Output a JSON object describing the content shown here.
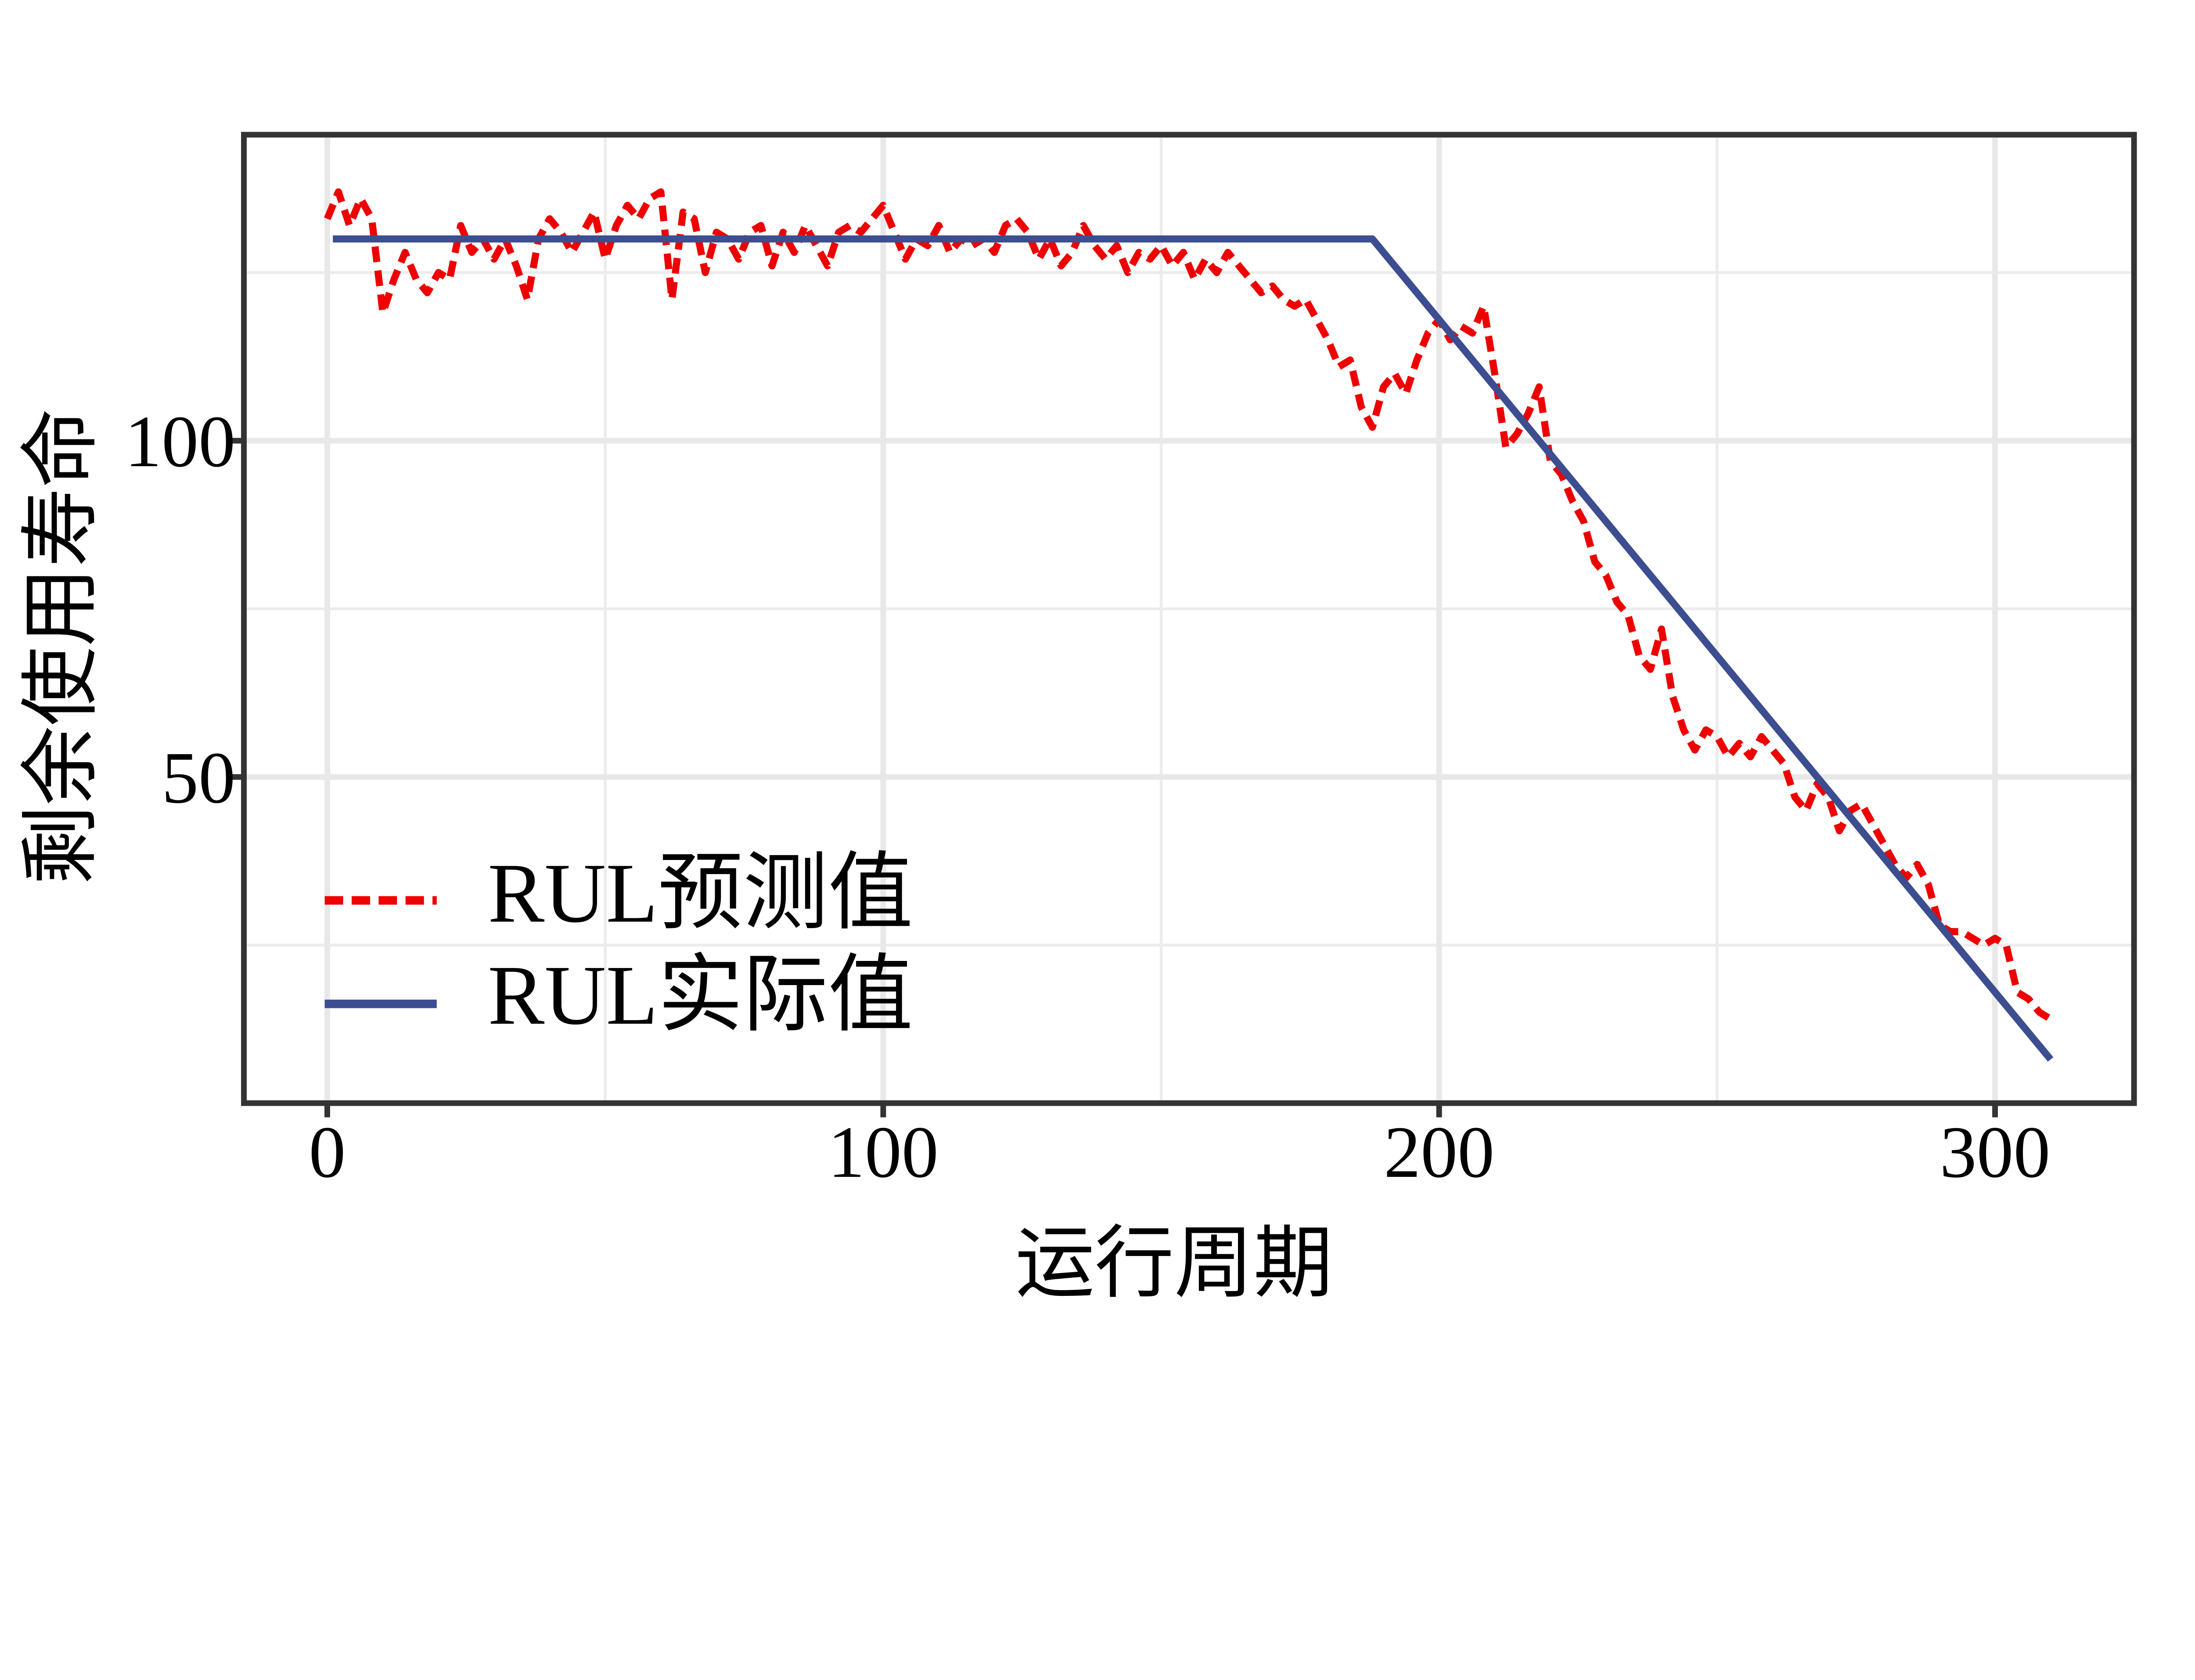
{
  "chart_data": {
    "type": "line",
    "xlabel": "运行周期",
    "ylabel": "剩余使用寿命",
    "xlim": [
      -15,
      325
    ],
    "ylim": [
      1.5,
      145.5
    ],
    "xticks": [
      0,
      100,
      200,
      300
    ],
    "yticks": [
      50,
      100
    ],
    "xtick_labels": [
      "0",
      "100",
      "200",
      "300"
    ],
    "ytick_labels": [
      "50",
      "100"
    ],
    "grid": true,
    "legend_position": "bottom-left",
    "series": [
      {
        "name": "RUL预测值",
        "color": "#EE0000",
        "style": "dashed",
        "x": [
          0,
          2,
          4,
          6,
          8,
          10,
          12,
          14,
          16,
          18,
          20,
          22,
          24,
          26,
          28,
          30,
          32,
          34,
          36,
          38,
          40,
          42,
          44,
          46,
          48,
          50,
          52,
          54,
          56,
          58,
          60,
          62,
          64,
          66,
          68,
          70,
          72,
          74,
          76,
          78,
          80,
          82,
          84,
          86,
          88,
          90,
          92,
          94,
          96,
          98,
          100,
          102,
          104,
          106,
          108,
          110,
          112,
          114,
          116,
          118,
          120,
          122,
          124,
          126,
          128,
          130,
          132,
          134,
          136,
          138,
          140,
          142,
          144,
          146,
          148,
          150,
          152,
          154,
          156,
          158,
          160,
          162,
          164,
          166,
          168,
          170,
          172,
          174,
          176,
          178,
          180,
          182,
          184,
          186,
          188,
          190,
          192,
          194,
          196,
          198,
          200,
          202,
          204,
          206,
          208,
          210,
          212,
          214,
          216,
          218,
          220,
          222,
          224,
          226,
          228,
          230,
          232,
          234,
          236,
          238,
          240,
          242,
          244,
          246,
          248,
          250,
          252,
          254,
          256,
          258,
          260,
          262,
          264,
          266,
          268,
          270,
          272,
          274,
          276,
          278,
          280,
          282,
          284,
          286,
          288,
          290,
          292,
          294,
          296,
          298,
          300,
          302,
          304,
          306,
          308,
          310
        ],
        "y": [
          133,
          137,
          132,
          136,
          133,
          119,
          124,
          128,
          124,
          122,
          125,
          124,
          132,
          128,
          130,
          127,
          130,
          126,
          121,
          130,
          133,
          131,
          128,
          131,
          134,
          127,
          132,
          135,
          133,
          136,
          137,
          121,
          134,
          133,
          125,
          131,
          130,
          127,
          131,
          132,
          126,
          131,
          128,
          132,
          129,
          126,
          131,
          132,
          131,
          133,
          135,
          131,
          127,
          130,
          129,
          132,
          128,
          130,
          129,
          130,
          128,
          132,
          133,
          131,
          127,
          130,
          126,
          128,
          132,
          129,
          127,
          129,
          125,
          128,
          127,
          129,
          126,
          128,
          124,
          127,
          125,
          128,
          126,
          124,
          122,
          123,
          121,
          120,
          121,
          118,
          115,
          111,
          112,
          105,
          102,
          108,
          110,
          107,
          112,
          116,
          118,
          115,
          117,
          116,
          120,
          110,
          99,
          101,
          104,
          108,
          97,
          95,
          91,
          88,
          82,
          80,
          76,
          74,
          68,
          66,
          72,
          62,
          57,
          54,
          57,
          56,
          53,
          55,
          53,
          56,
          54,
          52,
          47,
          45,
          49,
          47,
          42,
          45,
          46,
          43,
          40,
          37,
          35,
          37,
          34,
          28,
          27,
          27,
          26,
          25,
          26,
          25,
          18,
          17,
          15,
          14
        ]
      },
      {
        "name": "RUL实际值",
        "color": "#3C4D90",
        "style": "solid",
        "x": [
          1,
          188,
          310
        ],
        "y": [
          130,
          130,
          8
        ]
      }
    ]
  }
}
